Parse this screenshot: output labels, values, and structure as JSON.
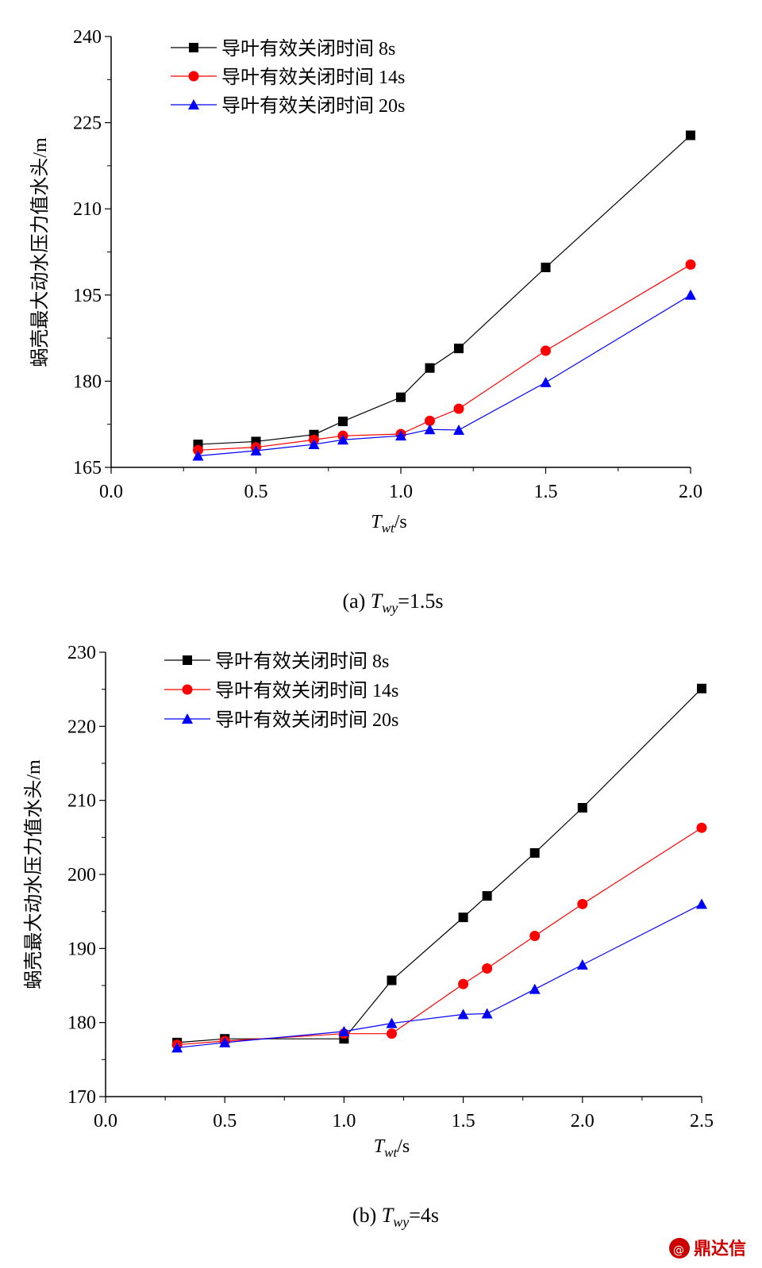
{
  "chart_data": [
    {
      "type": "line",
      "caption_prefix": "(a)",
      "caption_param": "=1.5s",
      "ylabel": "蜗壳最大动水压力值水头/m",
      "xlabel_suffix": "/s",
      "xlim": [
        0.0,
        2.0
      ],
      "ylim": [
        165,
        240
      ],
      "x_ticks": [
        "0.0",
        "0.5",
        "1.0",
        "1.5",
        "2.0"
      ],
      "y_ticks": [
        "165",
        "180",
        "195",
        "210",
        "225",
        "240"
      ],
      "legend_position": "top-left",
      "series": [
        {
          "name": "导叶有效关闭时间 8s",
          "color": "#000000",
          "marker": "square",
          "x": [
            0.3,
            0.5,
            0.7,
            0.8,
            1.0,
            1.1,
            1.2,
            1.5,
            2.0
          ],
          "values": [
            169.0,
            169.5,
            170.7,
            173.0,
            177.2,
            182.3,
            185.7,
            199.8,
            222.8
          ]
        },
        {
          "name": "导叶有效关闭时间 14s",
          "color": "#ff0000",
          "marker": "circle",
          "x": [
            0.3,
            0.5,
            0.7,
            0.8,
            1.0,
            1.1,
            1.2,
            1.5,
            2.0
          ],
          "values": [
            168.0,
            168.5,
            169.8,
            170.5,
            170.8,
            173.1,
            175.2,
            185.3,
            200.3
          ]
        },
        {
          "name": "导叶有效关闭时间 20s",
          "color": "#0000ff",
          "marker": "triangle",
          "x": [
            0.3,
            0.5,
            0.7,
            0.8,
            1.0,
            1.1,
            1.2,
            1.5,
            2.0
          ],
          "values": [
            167.0,
            167.9,
            169.0,
            169.8,
            170.5,
            171.6,
            171.5,
            179.8,
            195.0
          ]
        }
      ]
    },
    {
      "type": "line",
      "caption_prefix": "(b)",
      "caption_param": "=4s",
      "ylabel": "蜗壳最大动水压力值水头/m",
      "xlabel_suffix": "/s",
      "xlim": [
        0.0,
        2.5
      ],
      "ylim": [
        170,
        230
      ],
      "x_ticks": [
        "0.0",
        "0.5",
        "1.0",
        "1.5",
        "2.0",
        "2.5"
      ],
      "y_ticks": [
        "170",
        "180",
        "190",
        "200",
        "210",
        "220",
        "230"
      ],
      "legend_position": "top-left",
      "series": [
        {
          "name": "导叶有效关闭时间 8s",
          "color": "#000000",
          "marker": "square",
          "x": [
            0.3,
            0.5,
            1.0,
            1.2,
            1.5,
            1.6,
            1.8,
            2.0,
            2.5
          ],
          "values": [
            177.3,
            177.8,
            177.8,
            185.7,
            194.2,
            197.1,
            202.9,
            209.0,
            225.1
          ]
        },
        {
          "name": "导叶有效关闭时间 14s",
          "color": "#ff0000",
          "marker": "circle",
          "x": [
            0.3,
            0.5,
            1.0,
            1.2,
            1.5,
            1.6,
            1.8,
            2.0,
            2.5
          ],
          "values": [
            177.0,
            177.5,
            178.5,
            178.5,
            185.2,
            187.3,
            191.7,
            196.0,
            206.3
          ]
        },
        {
          "name": "导叶有效关闭时间 20s",
          "color": "#0000ff",
          "marker": "triangle",
          "x": [
            0.3,
            0.5,
            1.0,
            1.2,
            1.5,
            1.6,
            1.8,
            2.0,
            2.5
          ],
          "values": [
            176.6,
            177.3,
            178.8,
            179.9,
            181.1,
            181.2,
            184.5,
            187.8,
            196.0
          ]
        }
      ]
    }
  ],
  "watermark": "鼎达信"
}
